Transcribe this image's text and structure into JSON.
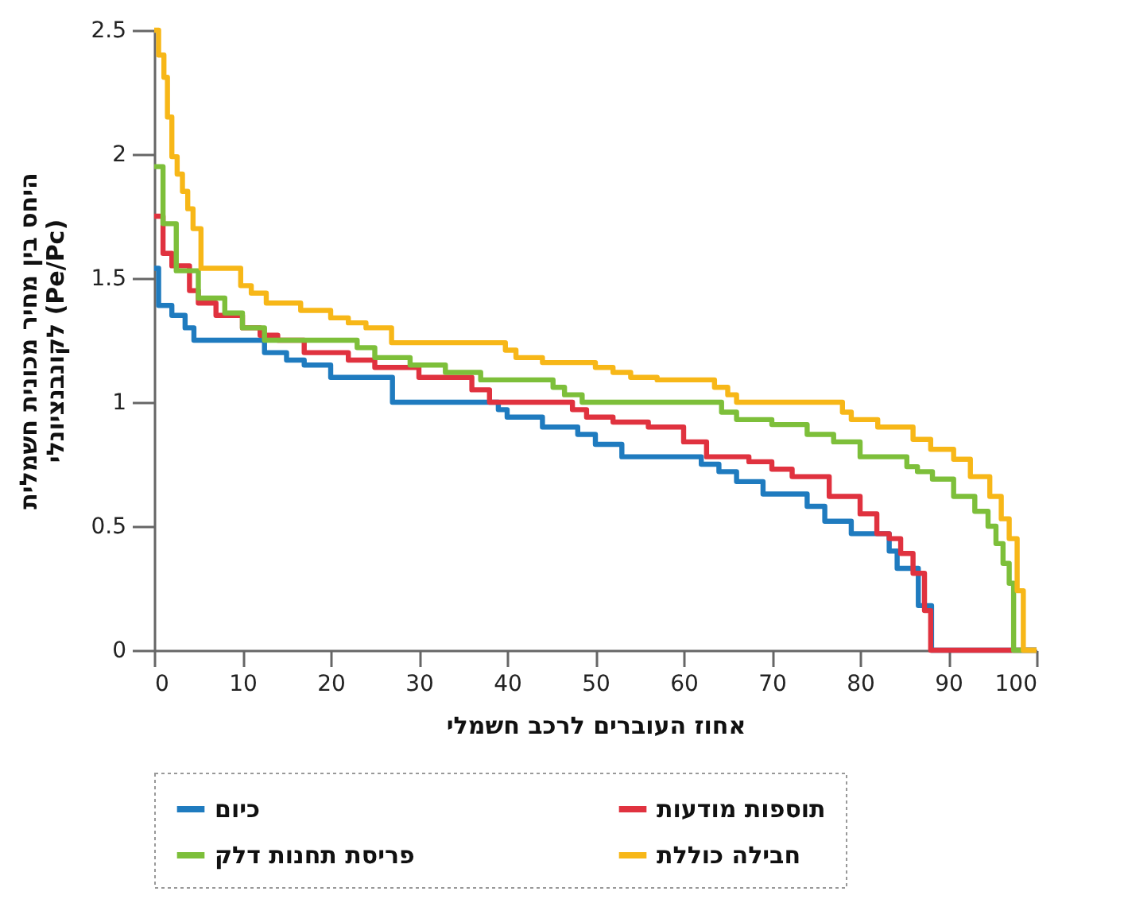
{
  "chart_data": {
    "type": "step",
    "xlabel": "אחוז העוברים לרכב חשמלי",
    "ylabel": "היחס בין מחיר מכונית חשמלית\nלקונבנציונלי (Pe/Pc)",
    "xlim": [
      0,
      100
    ],
    "xticks": [
      0,
      10,
      20,
      30,
      40,
      50,
      60,
      70,
      80,
      90,
      100
    ],
    "ylim": [
      0,
      2.5
    ],
    "yticks": [
      0,
      0.5,
      1,
      1.5,
      2,
      2.5
    ],
    "grid": false,
    "legend": "bottom",
    "series": [
      {
        "name": "כיום",
        "color": "#1f7bbf",
        "x": [
          0,
          0.5,
          2,
          3.5,
          4.5,
          12.5,
          15,
          17,
          20,
          27,
          39,
          40,
          44,
          48,
          50,
          53,
          62,
          64,
          66,
          69,
          74,
          76,
          79,
          83.3,
          84.2,
          86.6,
          88.1,
          100
        ],
        "values": [
          1.54,
          1.39,
          1.35,
          1.3,
          1.25,
          1.2,
          1.17,
          1.15,
          1.1,
          1.0,
          0.97,
          0.94,
          0.9,
          0.87,
          0.83,
          0.78,
          0.75,
          0.72,
          0.68,
          0.63,
          0.58,
          0.52,
          0.47,
          0.4,
          0.33,
          0.18,
          0,
          0
        ]
      },
      {
        "name": "תוספות מודעות",
        "color": "#e0323f",
        "x": [
          0,
          1,
          2,
          4,
          5,
          7,
          10,
          12,
          14,
          17,
          22,
          25,
          30,
          36,
          38,
          47.4,
          49,
          52,
          56,
          60,
          62.6,
          67.4,
          70,
          72.3,
          76.5,
          80,
          81.9,
          83.3,
          84.6,
          86,
          87.3,
          88,
          100
        ],
        "values": [
          1.75,
          1.6,
          1.55,
          1.45,
          1.4,
          1.35,
          1.3,
          1.27,
          1.25,
          1.2,
          1.17,
          1.14,
          1.1,
          1.05,
          1.0,
          0.97,
          0.94,
          0.92,
          0.9,
          0.84,
          0.78,
          0.76,
          0.73,
          0.7,
          0.62,
          0.55,
          0.47,
          0.45,
          0.39,
          0.31,
          0.16,
          0,
          0
        ]
      },
      {
        "name": "פריסת תחנות דלק",
        "color": "#7dbf3a",
        "x": [
          0,
          1,
          2.5,
          5,
          8,
          10,
          12.5,
          23,
          25,
          29,
          33,
          37,
          45.2,
          46.5,
          48.5,
          64.3,
          66,
          70,
          74,
          77,
          80,
          85.3,
          86.5,
          88.2,
          90.6,
          93,
          94.5,
          95.4,
          96.2,
          96.9,
          97.4,
          100
        ],
        "values": [
          1.95,
          1.72,
          1.53,
          1.42,
          1.36,
          1.3,
          1.25,
          1.22,
          1.18,
          1.15,
          1.12,
          1.09,
          1.06,
          1.03,
          1.0,
          0.96,
          0.93,
          0.91,
          0.87,
          0.84,
          0.78,
          0.74,
          0.72,
          0.69,
          0.62,
          0.56,
          0.5,
          0.43,
          0.35,
          0.27,
          0,
          0
        ]
      },
      {
        "name": "חבילה כוללת",
        "color": "#f7b718",
        "x": [
          0,
          0.5,
          1.1,
          1.5,
          2,
          2.6,
          3.2,
          3.8,
          4.4,
          5.3,
          9.8,
          11,
          12.7,
          16.6,
          20,
          22,
          24,
          26.9,
          39.8,
          41,
          44,
          50,
          52,
          54,
          57,
          63.5,
          65,
          66,
          78,
          79,
          82,
          86,
          88,
          90.6,
          92.5,
          94.7,
          96,
          96.9,
          97.8,
          98.5,
          100
        ],
        "values": [
          2.5,
          2.4,
          2.31,
          2.15,
          1.99,
          1.92,
          1.85,
          1.78,
          1.7,
          1.54,
          1.47,
          1.44,
          1.4,
          1.37,
          1.34,
          1.32,
          1.3,
          1.24,
          1.21,
          1.18,
          1.16,
          1.14,
          1.12,
          1.1,
          1.09,
          1.06,
          1.03,
          1.0,
          0.96,
          0.93,
          0.9,
          0.85,
          0.81,
          0.77,
          0.7,
          0.62,
          0.53,
          0.45,
          0.24,
          0,
          0
        ]
      }
    ]
  }
}
